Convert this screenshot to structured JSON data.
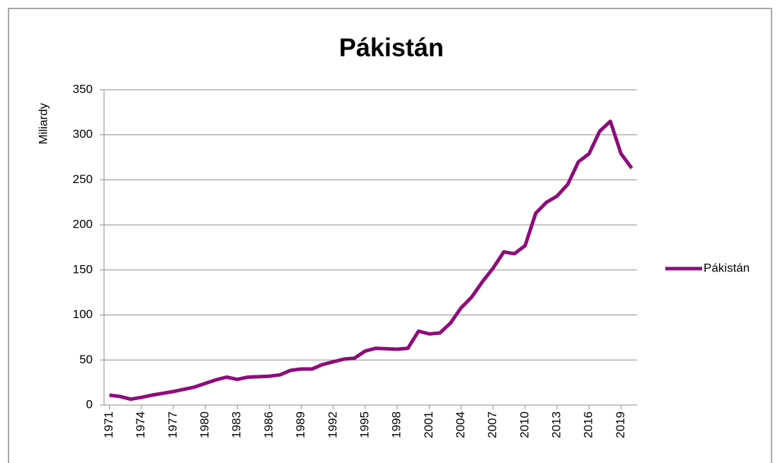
{
  "chart_data": {
    "type": "line",
    "title": "Pákistán",
    "y_label": "Miliardy",
    "x": [
      1971,
      1972,
      1973,
      1974,
      1975,
      1976,
      1977,
      1978,
      1979,
      1980,
      1981,
      1982,
      1983,
      1984,
      1985,
      1986,
      1987,
      1988,
      1989,
      1990,
      1991,
      1992,
      1993,
      1994,
      1995,
      1996,
      1997,
      1998,
      1999,
      2000,
      2001,
      2002,
      2003,
      2004,
      2005,
      2006,
      2007,
      2008,
      2009,
      2010,
      2011,
      2012,
      2013,
      2014,
      2015,
      2016,
      2017,
      2018,
      2019,
      2020
    ],
    "series": [
      {
        "name": "Pákistán",
        "color": "#8e0c7b",
        "values": [
          11,
          9.5,
          6.5,
          8.5,
          11,
          13,
          15,
          17.5,
          20,
          24,
          28,
          31,
          28.5,
          31,
          31.5,
          32,
          33.5,
          38.5,
          40,
          40,
          45,
          48,
          51,
          52,
          60,
          63,
          62.5,
          62,
          63,
          82,
          79,
          80,
          91,
          108,
          120,
          137,
          152,
          170,
          168,
          177,
          213,
          225,
          232,
          245,
          270,
          279,
          304,
          315,
          279,
          263
        ]
      }
    ],
    "xlim": [
      1970.5,
      2020.5
    ],
    "xticks": [
      1971,
      1974,
      1977,
      1980,
      1983,
      1986,
      1989,
      1992,
      1995,
      1998,
      2001,
      2004,
      2007,
      2010,
      2013,
      2016,
      2019
    ],
    "ylim": [
      0,
      350
    ],
    "yticks": [
      0,
      50,
      100,
      150,
      200,
      250,
      300,
      350
    ],
    "grid": true,
    "legend": "right"
  }
}
